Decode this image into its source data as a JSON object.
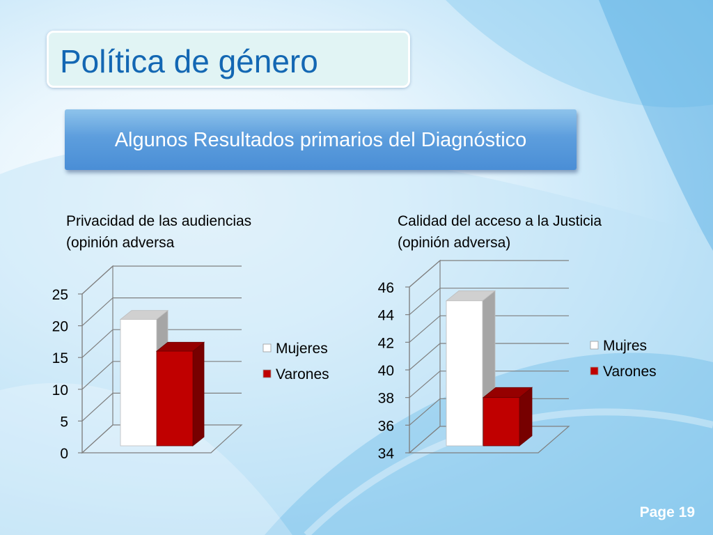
{
  "slide": {
    "title": "Política de género",
    "subtitle": "Algunos Resultados primarios del Diagnóstico",
    "page_label": "Page 19"
  },
  "chart_data": [
    {
      "type": "bar",
      "title_lines": [
        "Privacidad de las audiencias",
        "(opinión adversa"
      ],
      "categories": [
        ""
      ],
      "series": [
        {
          "name": "Mujeres",
          "values": [
            21
          ],
          "color": "#ffffff"
        },
        {
          "name": "Varones",
          "values": [
            16
          ],
          "color": "#c00000"
        }
      ],
      "ylim": [
        0,
        25
      ],
      "yticks": [
        0,
        5,
        10,
        15,
        20,
        25
      ],
      "xlabel": "",
      "ylabel": "",
      "grid": true,
      "legend_position": "right"
    },
    {
      "type": "bar",
      "title_lines": [
        "Calidad del acceso a la Justicia",
        "(opinión adversa)"
      ],
      "categories": [
        ""
      ],
      "series": [
        {
          "name": "Mujres",
          "values": [
            45
          ],
          "color": "#ffffff"
        },
        {
          "name": "Varones",
          "values": [
            38
          ],
          "color": "#c00000"
        }
      ],
      "ylim": [
        34,
        46
      ],
      "yticks": [
        34,
        36,
        38,
        40,
        42,
        44,
        46
      ],
      "xlabel": "",
      "ylabel": "",
      "grid": true,
      "legend_position": "right"
    }
  ]
}
